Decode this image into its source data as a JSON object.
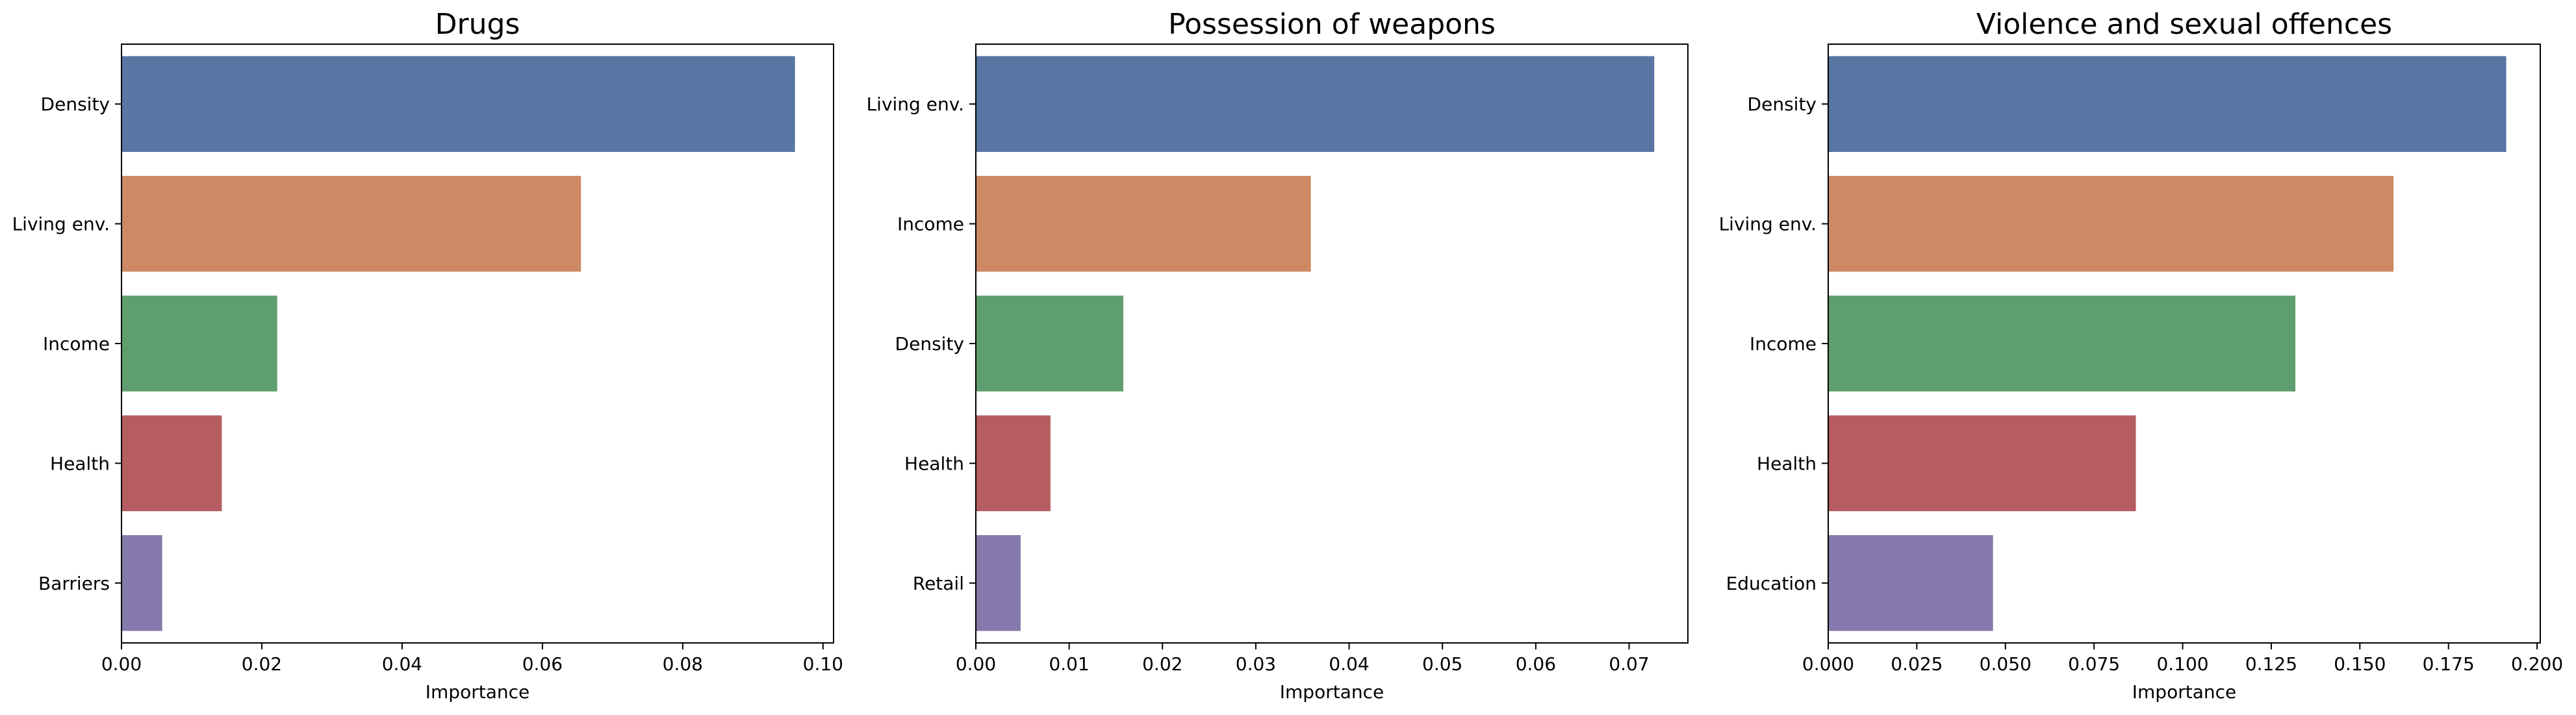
{
  "chart_data": [
    {
      "type": "bar",
      "orientation": "horizontal",
      "title": "Drugs",
      "xlabel": "Importance",
      "ylabel": "",
      "categories": [
        "Density",
        "Living env.",
        "Income",
        "Health",
        "Barriers"
      ],
      "values": [
        0.096,
        0.0655,
        0.0222,
        0.0143,
        0.0058
      ],
      "xlim": [
        0,
        0.1015
      ],
      "xticks": [
        "0.00",
        "0.02",
        "0.04",
        "0.06",
        "0.08",
        "0.10"
      ],
      "xtick_values": [
        0,
        0.02,
        0.04,
        0.06,
        0.08,
        0.1
      ],
      "colors": [
        "#5875a4",
        "#cc8963",
        "#5f9e6e",
        "#b55d60",
        "#857aab"
      ],
      "grid": false
    },
    {
      "type": "bar",
      "orientation": "horizontal",
      "title": "Possession of weapons",
      "xlabel": "Importance",
      "ylabel": "",
      "categories": [
        "Living env.",
        "Income",
        "Density",
        "Health",
        "Retail"
      ],
      "values": [
        0.0727,
        0.0359,
        0.0158,
        0.008,
        0.0048
      ],
      "xlim": [
        0,
        0.0763
      ],
      "xticks": [
        "0.00",
        "0.01",
        "0.02",
        "0.03",
        "0.04",
        "0.05",
        "0.06",
        "0.07"
      ],
      "xtick_values": [
        0,
        0.01,
        0.02,
        0.03,
        0.04,
        0.05,
        0.06,
        0.07
      ],
      "colors": [
        "#5875a4",
        "#cc8963",
        "#5f9e6e",
        "#b55d60",
        "#857aab"
      ],
      "grid": false
    },
    {
      "type": "bar",
      "orientation": "horizontal",
      "title": "Violence and sexual offences",
      "xlabel": "Importance",
      "ylabel": "",
      "categories": [
        "Density",
        "Living env.",
        "Income",
        "Health",
        "Education"
      ],
      "values": [
        0.1913,
        0.1595,
        0.1318,
        0.0868,
        0.0465
      ],
      "xlim": [
        0,
        0.2009
      ],
      "xticks": [
        "0.000",
        "0.025",
        "0.050",
        "0.075",
        "0.100",
        "0.125",
        "0.150",
        "0.175",
        "0.200"
      ],
      "xtick_values": [
        0,
        0.025,
        0.05,
        0.075,
        0.1,
        0.125,
        0.15,
        0.175,
        0.2
      ],
      "colors": [
        "#5875a4",
        "#cc8963",
        "#5f9e6e",
        "#b55d60",
        "#857aab"
      ],
      "grid": false
    }
  ]
}
